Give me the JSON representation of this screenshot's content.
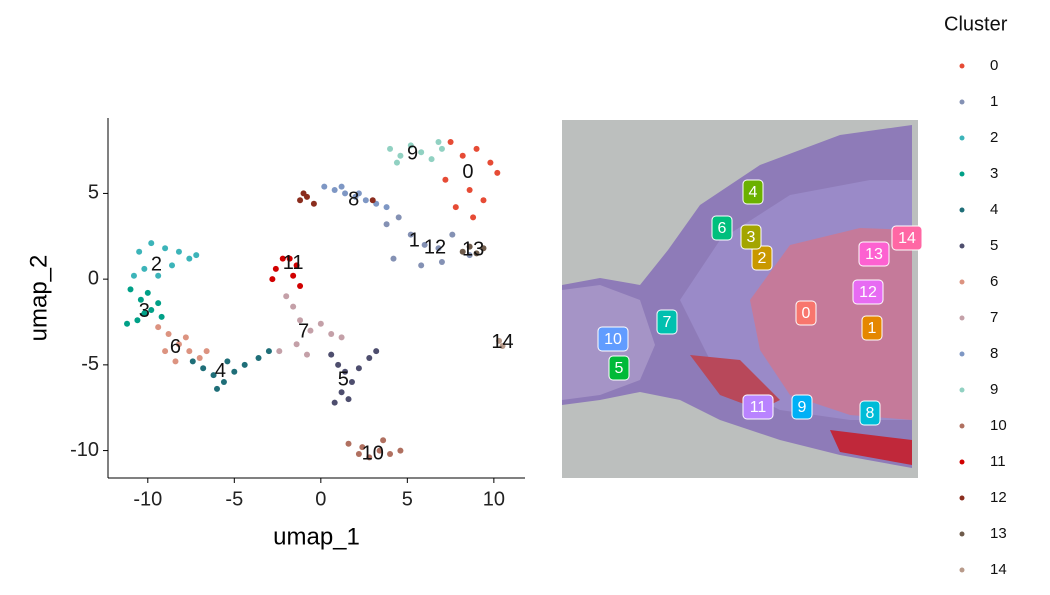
{
  "chart_data": {
    "type": "scatter",
    "xlabel": "umap_1",
    "ylabel": "umap_2",
    "xlim": [
      -12.3,
      11.8
    ],
    "ylim": [
      -11.6,
      9.4
    ],
    "xticks": [
      -10,
      -5,
      0,
      5,
      10
    ],
    "yticks": [
      5,
      0,
      -5,
      -10
    ],
    "legend_title": "Cluster",
    "series": [
      {
        "name": "0",
        "color": "#E64B35",
        "label_x": 8.5,
        "label_y": 6.2,
        "x": [
          7.5,
          8.2,
          9,
          9.8,
          10.2,
          8.6,
          7.8,
          9.4,
          8.8,
          7.2
        ],
        "y": [
          8,
          7.2,
          7.6,
          6.8,
          6.2,
          5.2,
          4.2,
          4.6,
          3.6,
          5.8
        ]
      },
      {
        "name": "1",
        "color": "#8491B4",
        "label_x": 5.4,
        "label_y": 2.2,
        "x": [
          4.5,
          5.2,
          6,
          6.8,
          7.6,
          4.2,
          5.8,
          8.6,
          3.8,
          7
        ],
        "y": [
          3.6,
          2.6,
          2,
          1.8,
          2.6,
          1.2,
          0.8,
          1.4,
          3.2,
          1
        ]
      },
      {
        "name": "2",
        "color": "#3CB4B9",
        "label_x": -9.5,
        "label_y": 0.8,
        "x": [
          -10.5,
          -9.8,
          -9,
          -8.2,
          -7.6,
          -10.2,
          -9.4,
          -8.6,
          -7.2,
          -10.8
        ],
        "y": [
          1.6,
          2.1,
          1.8,
          1.6,
          1.2,
          0.6,
          0.2,
          0.8,
          1.4,
          0.2
        ]
      },
      {
        "name": "3",
        "color": "#00A087",
        "label_x": -10.2,
        "label_y": -1.9,
        "x": [
          -11,
          -10.4,
          -9.8,
          -9.2,
          -10.6,
          -10,
          -9.4,
          -11.2,
          -10.2
        ],
        "y": [
          -0.6,
          -1.2,
          -1.8,
          -2.2,
          -2.4,
          -0.8,
          -1.4,
          -2.6,
          -2
        ]
      },
      {
        "name": "4",
        "color": "#1F6E78",
        "label_x": -5.8,
        "label_y": -5.4,
        "x": [
          -7.4,
          -6.8,
          -6.2,
          -5.6,
          -5,
          -4.4,
          -6,
          -5.4,
          -3.6,
          -3
        ],
        "y": [
          -4.8,
          -5.2,
          -5.6,
          -6,
          -5.4,
          -5,
          -6.4,
          -4.8,
          -4.6,
          -4.2
        ]
      },
      {
        "name": "5",
        "color": "#4E4E6E",
        "label_x": 1.3,
        "label_y": -5.9,
        "x": [
          0.6,
          1,
          1.4,
          1.8,
          2.2,
          2.8,
          1.2,
          0.8,
          3.2,
          1.6
        ],
        "y": [
          -4.4,
          -5,
          -5.4,
          -6,
          -5.2,
          -4.6,
          -6.6,
          -7.2,
          -4.2,
          -7
        ]
      },
      {
        "name": "6",
        "color": "#DC9380",
        "label_x": -8.4,
        "label_y": -4.0,
        "x": [
          -9.4,
          -8.8,
          -8.2,
          -7.6,
          -7,
          -9,
          -8.4,
          -6.6,
          -7.8
        ],
        "y": [
          -2.8,
          -3.2,
          -3.8,
          -4.2,
          -4.6,
          -4.2,
          -4.8,
          -4.2,
          -3.4
        ]
      },
      {
        "name": "7",
        "color": "#C4A0A8",
        "label_x": -1.0,
        "label_y": -3.1,
        "x": [
          -2,
          -1.6,
          -1.2,
          -0.6,
          0,
          0.6,
          -1.4,
          -0.8,
          1.2,
          -2.4
        ],
        "y": [
          -1,
          -1.6,
          -2.4,
          -3,
          -2.6,
          -3.2,
          -3.8,
          -4.4,
          -3.4,
          -4.2
        ]
      },
      {
        "name": "8",
        "color": "#7E97C4",
        "label_x": 1.9,
        "label_y": 4.6,
        "x": [
          0.2,
          0.8,
          1.4,
          2,
          2.6,
          3.2,
          1.2,
          3.8,
          2.2
        ],
        "y": [
          5.4,
          5.2,
          5,
          4.8,
          4.6,
          4.4,
          5.4,
          4.2,
          5
        ]
      },
      {
        "name": "9",
        "color": "#91D1C2",
        "label_x": 5.3,
        "label_y": 7.3,
        "x": [
          4,
          4.6,
          5.2,
          5.8,
          6.4,
          7,
          4.4,
          6.8
        ],
        "y": [
          7.6,
          7.2,
          7.8,
          7.4,
          7,
          7.6,
          6.8,
          8
        ]
      },
      {
        "name": "10",
        "color": "#B07060",
        "label_x": 3.0,
        "label_y": -10.2,
        "x": [
          1.6,
          2.2,
          2.8,
          3.4,
          4,
          4.6,
          2.4,
          3.6
        ],
        "y": [
          -9.6,
          -10.2,
          -10.4,
          -10,
          -10.2,
          -10,
          -9.8,
          -9.4
        ]
      },
      {
        "name": "11",
        "color": "#D10000",
        "label_x": -1.6,
        "label_y": 0.9,
        "x": [
          -1.8,
          -1.4,
          -1.6,
          -2.8,
          -2.6,
          -1.2,
          -2.2
        ],
        "y": [
          1.2,
          0.8,
          0.2,
          0,
          0.6,
          -0.4,
          1.2
        ]
      },
      {
        "name": "12",
        "color": "#8B2D1E",
        "label_x": 6.6,
        "label_y": 1.8,
        "x": [
          -1.2,
          -0.8,
          -0.4,
          -1,
          3
        ],
        "y": [
          4.6,
          4.8,
          4.4,
          5,
          4.6
        ]
      },
      {
        "name": "13",
        "color": "#6E5B4B",
        "label_x": 8.8,
        "label_y": 1.7,
        "x": [
          8.2,
          8.6,
          9,
          9.4
        ],
        "y": [
          1.6,
          1.9,
          1.5,
          1.8
        ]
      },
      {
        "name": "14",
        "color": "#B89A8A",
        "label_x": 10.5,
        "label_y": -3.7,
        "x": [
          10.3,
          10.5
        ],
        "y": [
          -3.6,
          -3.9
        ]
      }
    ]
  },
  "spatial_panel": {
    "label_colors": [
      "#F8766D",
      "#E58700",
      "#C99800",
      "#A3A500",
      "#6BB100",
      "#00BA38",
      "#00BF7D",
      "#00C0AF",
      "#00BCD8",
      "#00B0F6",
      "#619CFF",
      "#B983FF",
      "#E76BF3",
      "#FD61D1",
      "#FF67A4"
    ]
  }
}
